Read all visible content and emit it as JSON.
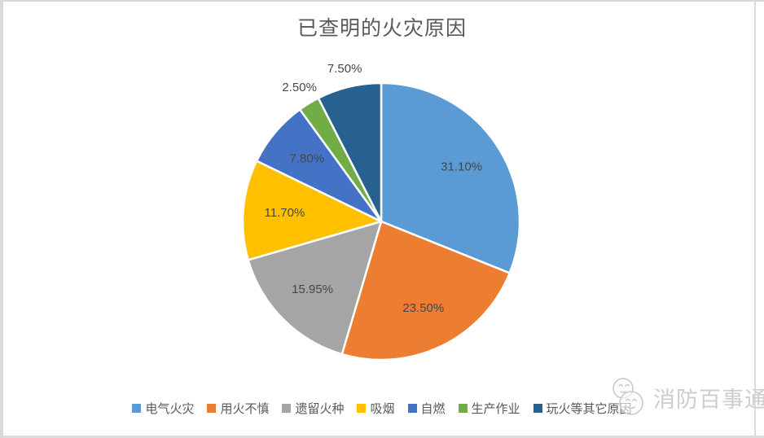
{
  "title": "已查明的火灾原因",
  "chart_data": {
    "type": "pie",
    "title": "已查明的火灾原因",
    "start_angle_deg": 0,
    "direction": "clockwise",
    "legend_position": "bottom",
    "label_format": "percent",
    "slices": [
      {
        "label": "电气火灾",
        "value": 31.1,
        "display": "31.10%",
        "color": "#5B9BD5",
        "label_placement": "inside"
      },
      {
        "label": "用火不慎",
        "value": 23.5,
        "display": "23.50%",
        "color": "#ED7D31",
        "label_placement": "inside"
      },
      {
        "label": "遗留火种",
        "value": 15.95,
        "display": "15.95%",
        "color": "#A5A5A5",
        "label_placement": "inside"
      },
      {
        "label": "吸烟",
        "value": 11.7,
        "display": "11.70%",
        "color": "#FFC000",
        "label_placement": "inside"
      },
      {
        "label": "自燃",
        "value": 7.8,
        "display": "7.80%",
        "color": "#4472C4",
        "label_placement": "inside"
      },
      {
        "label": "生产作业",
        "value": 2.5,
        "display": "2.50%",
        "color": "#70AD47",
        "label_placement": "outside"
      },
      {
        "label": "玩火等其它原因",
        "value": 7.5,
        "display": "7.50%",
        "color": "#27618F",
        "label_placement": "outside"
      }
    ]
  },
  "watermark": {
    "text": "消防百事通"
  },
  "colors": {
    "background": "#ffffff",
    "title_text": "#595959",
    "slice_label_text": "#474747",
    "legend_text": "#595959",
    "separator": "#ffffff",
    "panel_border": "#d9d9d9",
    "watermark_text": "#cdcdcd"
  }
}
